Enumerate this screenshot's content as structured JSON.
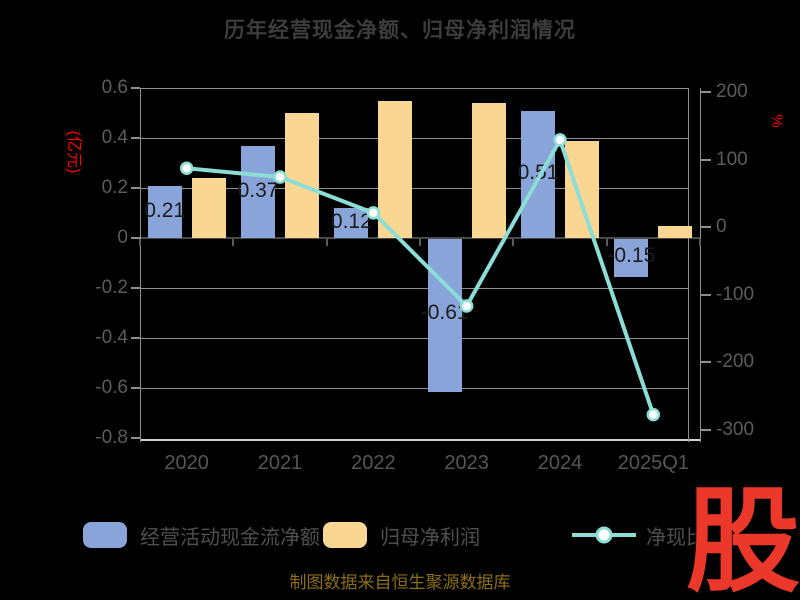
{
  "title": "历年经营现金净额、归母净利润情况",
  "footer": "制图数据来自恒生聚源数据库",
  "watermark": "股",
  "chart_data": {
    "type": "bar",
    "categories": [
      "2020",
      "2021",
      "2022",
      "2023",
      "2024",
      "2025Q1"
    ],
    "series": [
      {
        "name": "经营活动现金流净额",
        "type": "bar",
        "axis": "left",
        "color": "#88A4D8",
        "values": [
          0.21,
          0.37,
          0.12,
          -0.61,
          0.51,
          -0.15
        ],
        "labels": [
          "0.21",
          "0.37",
          "0.12",
          "-0.61",
          "0.51",
          "-0.15"
        ]
      },
      {
        "name": "归母净利润",
        "type": "bar",
        "axis": "left",
        "color": "#FAD693",
        "values": [
          0.24,
          0.5,
          0.55,
          0.54,
          0.39,
          0.05
        ]
      },
      {
        "name": "净现比",
        "type": "line",
        "axis": "right",
        "color": "#8BDDD6",
        "values": [
          87,
          74,
          21,
          -117,
          129,
          -278
        ]
      }
    ],
    "left_axis": {
      "label": "(亿元)",
      "min": -0.8,
      "max": 0.6,
      "ticks": [
        0.6,
        0.4,
        0.2,
        0,
        -0.2,
        -0.4,
        -0.6,
        -0.8
      ],
      "label_color": "#fe0000"
    },
    "right_axis": {
      "label": "%",
      "min": -300,
      "max": 200,
      "ticks": [
        200,
        100,
        0,
        -100,
        -200,
        -300
      ],
      "label_color": "#fe0000"
    },
    "grid": true,
    "legend_position": "bottom"
  },
  "colors": {
    "background": "#000000",
    "title": "#3c3c3c",
    "tick_label": "#5c5c5c",
    "gridline": "#8f8f8f",
    "zero_axis": "#4a4a4a",
    "bottom_border": "#cfcfcf",
    "bar_label": "#1d1d1d",
    "legend_text": "#4f4f4f",
    "footer": "#8d6e13",
    "watermark": "#ec382b"
  }
}
